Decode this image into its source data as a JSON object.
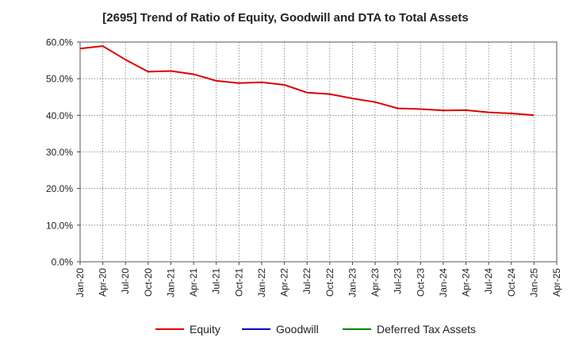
{
  "chart_data": {
    "type": "line",
    "title": "[2695]  Trend of Ratio of Equity, Goodwill and DTA to Total Assets",
    "xlabel": "",
    "ylabel": "",
    "ylim": [
      0,
      60
    ],
    "yticks": [
      0,
      10,
      20,
      30,
      40,
      50,
      60
    ],
    "ytick_labels": [
      "0.0%",
      "10.0%",
      "20.0%",
      "30.0%",
      "40.0%",
      "50.0%",
      "60.0%"
    ],
    "xtick_labels": [
      "Jan-20",
      "Apr-20",
      "Jul-20",
      "Oct-20",
      "Jan-21",
      "Apr-21",
      "Jul-21",
      "Oct-21",
      "Jan-22",
      "Apr-22",
      "Jul-22",
      "Oct-22",
      "Jan-23",
      "Apr-23",
      "Jul-23",
      "Oct-23",
      "Jan-24",
      "Apr-24",
      "Jul-24",
      "Oct-24",
      "Jan-25",
      "Apr-25"
    ],
    "grid": true,
    "legend_position": "bottom",
    "series": [
      {
        "name": "Equity",
        "color": "#dd0000",
        "values": [
          58.2,
          58.9,
          55.2,
          51.9,
          52.1,
          51.2,
          49.4,
          48.8,
          49.0,
          48.3,
          46.2,
          45.8,
          44.6,
          43.6,
          41.9,
          41.7,
          41.3,
          41.4,
          40.8,
          40.5,
          40.0
        ]
      },
      {
        "name": "Goodwill",
        "color": "#0000cc",
        "values": []
      },
      {
        "name": "Deferred Tax Assets",
        "color": "#008800",
        "values": []
      }
    ]
  }
}
